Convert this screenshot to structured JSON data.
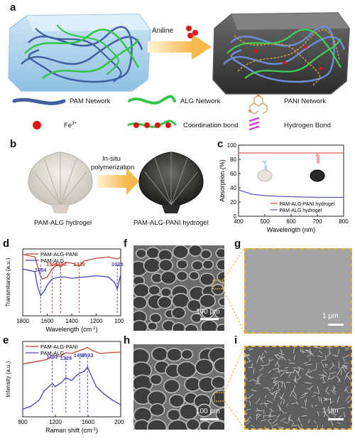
{
  "panels": {
    "a": "a",
    "b": "b",
    "c": "c",
    "d": "d",
    "e": "e",
    "f": "f",
    "g": "g",
    "h": "h",
    "i": "i"
  },
  "panel_a": {
    "arrow_label": "Aniline",
    "legend": {
      "pam": "PAM Network",
      "alg": "ALG Network",
      "pani": "PANI Network",
      "fe": "Fe",
      "fe_sup": "3+",
      "coord": "Coordination bond",
      "hbond": "Hydrogen Bond"
    },
    "colors": {
      "pam": "#3f5f9f",
      "alg": "#33c24a",
      "fe": "#e01515",
      "hbond": "#cc3fd8"
    }
  },
  "panel_b": {
    "arrow_line1": "In-situ",
    "arrow_line2": "polymerization",
    "left_caption": "PAM-ALG hydrogel",
    "right_caption": "PAM-ALG-PANI hydrogel"
  },
  "panel_c": {
    "chart_data": {
      "type": "line",
      "xlabel": "Wavelength (nm)",
      "ylabel": "Absorption (%)",
      "xlim": [
        400,
        800
      ],
      "ylim": [
        0,
        100
      ],
      "xticks": [
        "400",
        "500",
        "600",
        "700",
        "800"
      ],
      "yticks": [
        "0",
        "20",
        "40",
        "60",
        "80",
        "100"
      ],
      "series": [
        {
          "name": "PAM-ALG-PANI hydrogel",
          "color": "#e05a5a",
          "x": [
            400,
            500,
            600,
            700,
            800
          ],
          "y": [
            89,
            89,
            89,
            89,
            89
          ]
        },
        {
          "name": "PAM-ALG hydrogel",
          "color": "#5a5ab8",
          "x": [
            400,
            450,
            500,
            550,
            600,
            650,
            700,
            750,
            800
          ],
          "y": [
            37,
            31,
            29,
            28,
            27.5,
            27,
            26.5,
            26.5,
            26.5
          ]
        }
      ]
    }
  },
  "panel_d": {
    "chart_data": {
      "type": "line",
      "xlabel": "Wavelength (cm",
      "xlabel_sup": "-1",
      "xlabel_end": ")",
      "ylabel": "Transmitance (a.u.)",
      "xlim": [
        1800,
        1000
      ],
      "xticks": [
        "1800",
        "1600",
        "1400",
        "1200",
        "1000"
      ],
      "series": [
        {
          "name": "PAM-ALG-PANI",
          "color": "#c0463a",
          "x": [
            1800,
            1700,
            1660,
            1640,
            1600,
            1560,
            1520,
            1490,
            1450,
            1400,
            1339,
            1300,
            1200,
            1100,
            1028,
            1000
          ],
          "y": [
            0.92,
            0.88,
            0.62,
            0.55,
            0.58,
            0.7,
            0.76,
            0.73,
            0.8,
            0.79,
            0.74,
            0.82,
            0.86,
            0.88,
            0.85,
            0.88
          ]
        },
        {
          "name": "PAM-ALG",
          "color": "#4444b4",
          "x": [
            1800,
            1700,
            1680,
            1654,
            1620,
            1600,
            1560,
            1500,
            1450,
            1400,
            1300,
            1200,
            1100,
            1050,
            1028,
            1000
          ],
          "y": [
            0.7,
            0.66,
            0.45,
            0.3,
            0.38,
            0.46,
            0.55,
            0.58,
            0.58,
            0.56,
            0.58,
            0.6,
            0.58,
            0.5,
            0.4,
            0.62
          ]
        }
      ],
      "annotations": [
        {
          "text": "1654",
          "x": 1654,
          "color": "#4444b4"
        },
        {
          "text": "1560",
          "x": 1560,
          "color": "#c0463a"
        },
        {
          "text": "1490",
          "x": 1490,
          "color": "#c0463a"
        },
        {
          "text": "1339",
          "x": 1339,
          "color": "#c0463a"
        },
        {
          "text": "1028",
          "x": 1028,
          "color": "#4444b4"
        }
      ]
    }
  },
  "panel_e": {
    "chart_data": {
      "type": "line",
      "xlabel": "Raman shift (cm",
      "xlabel_sup": "-1",
      "xlabel_end": ")",
      "ylabel": "Intensity (a.u.)",
      "xlim": [
        800,
        2000
      ],
      "xticks": [
        "800",
        "1200",
        "1600",
        "2000"
      ],
      "series": [
        {
          "name": "PAM-ALG-PANI",
          "color": "#c0463a",
          "x": [
            800,
            900,
            1000,
            1100,
            1162,
            1250,
            1329,
            1400,
            1497,
            1550,
            1593,
            1650,
            1750,
            1850,
            2000
          ],
          "y": [
            0.7,
            0.72,
            0.74,
            0.76,
            0.82,
            0.8,
            0.85,
            0.84,
            0.88,
            0.9,
            0.92,
            0.88,
            0.84,
            0.85,
            0.86
          ]
        },
        {
          "name": "PAM-ALG",
          "color": "#4444b4",
          "x": [
            800,
            900,
            1000,
            1060,
            1100,
            1162,
            1200,
            1280,
            1329,
            1400,
            1450,
            1497,
            1550,
            1593,
            1650,
            1700,
            1800,
            1900,
            2000
          ],
          "y": [
            0.1,
            0.14,
            0.22,
            0.34,
            0.38,
            0.44,
            0.4,
            0.46,
            0.52,
            0.48,
            0.54,
            0.58,
            0.6,
            0.66,
            0.52,
            0.4,
            0.3,
            0.22,
            0.16
          ]
        }
      ],
      "annotations": [
        {
          "text": "1162",
          "x": 1162,
          "color": "#4444b4"
        },
        {
          "text": "1329",
          "x": 1329,
          "color": "#4444b4"
        },
        {
          "text": "1497",
          "x": 1497,
          "color": "#4444b4"
        },
        {
          "text": "1593",
          "x": 1593,
          "color": "#4444b4"
        }
      ]
    }
  },
  "sem": {
    "f_scale": "100 μm",
    "g_scale": "1 μm",
    "h_scale": "100 μm",
    "i_scale": "1 μm"
  }
}
